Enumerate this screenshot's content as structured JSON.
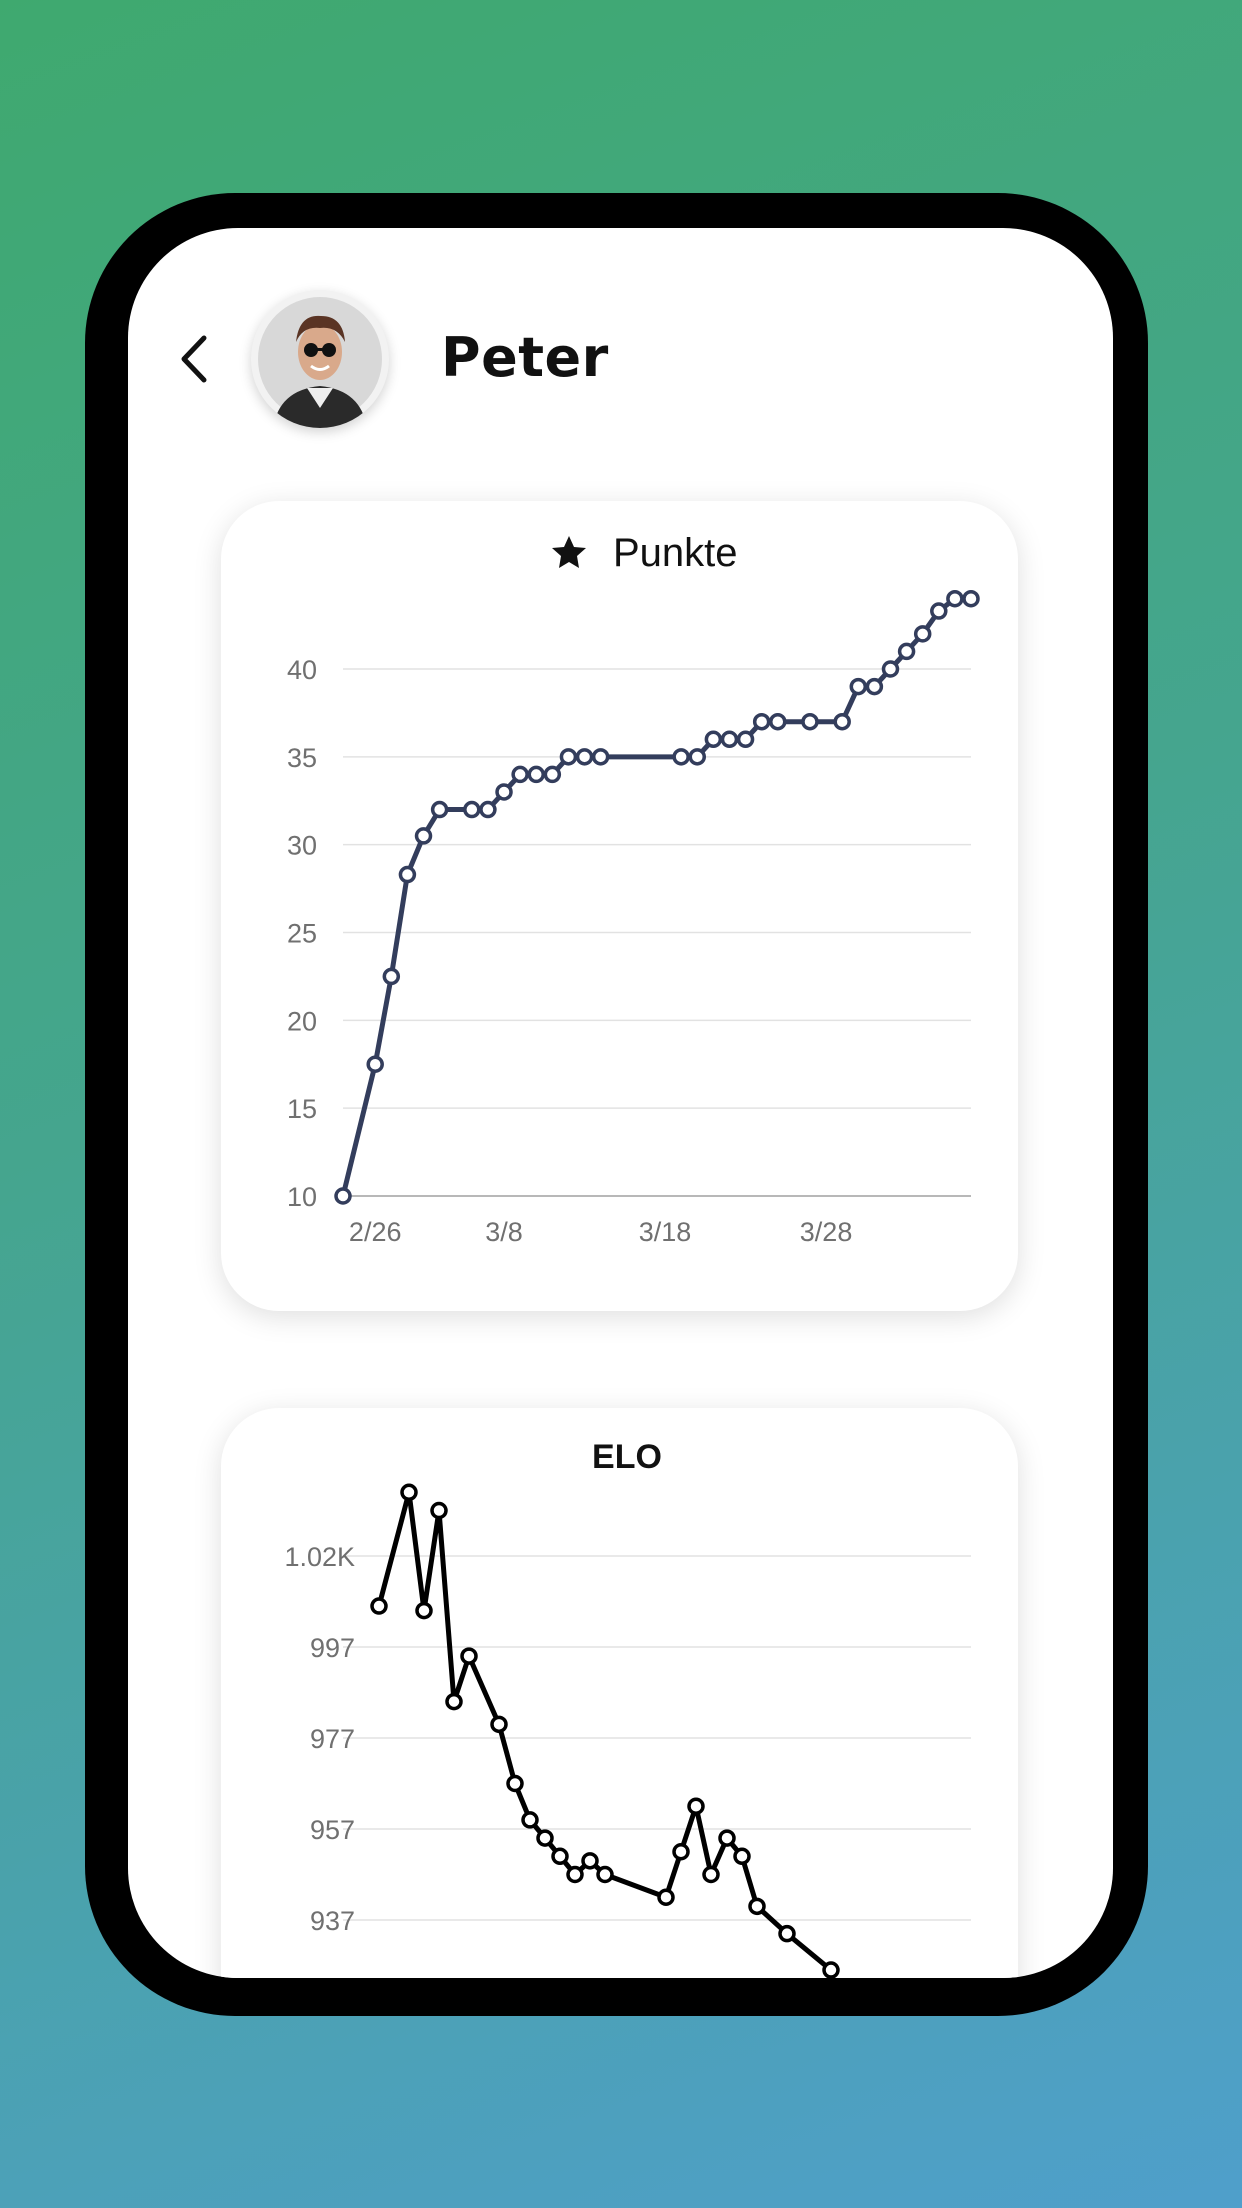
{
  "header": {
    "name": "Peter",
    "back_icon": "chevron-left-icon",
    "avatar_icon": "user-avatar"
  },
  "points_card": {
    "title": "Punkte",
    "title_icon": "star-icon"
  },
  "elo_card": {
    "title": "ELO"
  },
  "colors": {
    "background_top": "#3fa96f",
    "background_bottom": "#4f9fcb",
    "points_line": "#333d5c",
    "elo_line": "#000000"
  },
  "chart_data": [
    {
      "type": "line",
      "title": "Punkte",
      "x_ticks": [
        "2/26",
        "3/8",
        "3/18",
        "3/28"
      ],
      "y_ticks": [
        "10",
        "15",
        "20",
        "25",
        "30",
        "35",
        "40"
      ],
      "ylim": [
        10,
        44
      ],
      "grid": true,
      "series": [
        {
          "x": [
            24,
            26,
            27,
            28,
            29,
            30,
            32,
            33,
            34,
            35,
            36,
            37,
            38,
            39,
            40,
            45,
            46,
            47,
            48,
            49,
            50,
            51,
            53,
            55,
            56,
            57,
            58,
            59,
            60,
            61,
            62,
            63
          ],
          "values": [
            10,
            17.5,
            22.5,
            28.3,
            30.5,
            32,
            32,
            32,
            33,
            34,
            34,
            34,
            35,
            35,
            35,
            35,
            35,
            36,
            36,
            36,
            37,
            37,
            37,
            37,
            39,
            39,
            40,
            41,
            42,
            43.3,
            44,
            44
          ]
        }
      ]
    },
    {
      "type": "line",
      "title": "ELO",
      "y_ticks": [
        "1.02K",
        "997",
        "977",
        "957",
        "937"
      ],
      "ylim": [
        917,
        1031
      ],
      "grid": true,
      "series": [
        {
          "values": [
            1006,
            1031,
            1005,
            1027,
            985,
            995,
            980,
            967,
            959,
            955,
            951,
            947,
            950,
            947,
            942,
            952,
            962,
            947,
            955,
            951,
            940,
            934,
            926
          ]
        }
      ]
    }
  ]
}
